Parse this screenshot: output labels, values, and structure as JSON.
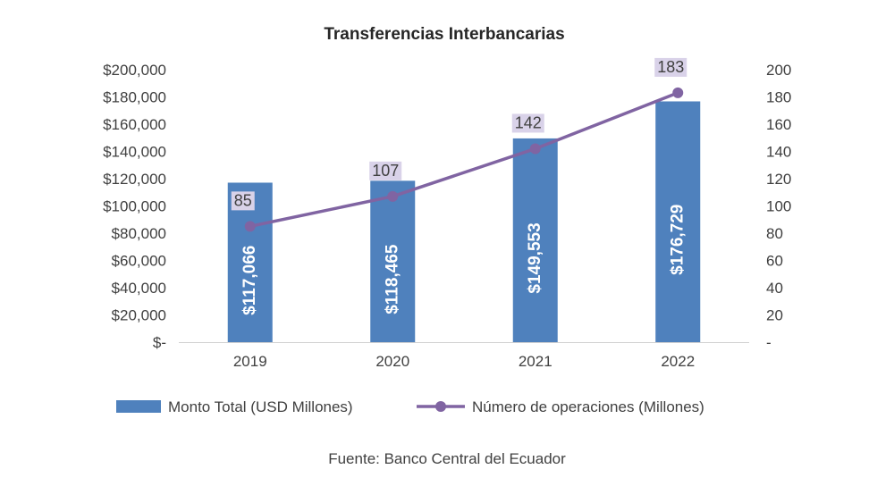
{
  "chart_data": {
    "type": "bar",
    "title": "Transferencias Interbancarias",
    "categories": [
      "2019",
      "2020",
      "2021",
      "2022"
    ],
    "series": [
      {
        "name": "Monto Total (USD Millones)",
        "type": "bar",
        "axis": "left",
        "values": [
          117066,
          118465,
          149553,
          176729
        ],
        "data_labels": [
          "$117,066",
          "$118,465",
          "$149,553",
          "$176,729"
        ],
        "color": "#4f81bd"
      },
      {
        "name": "Número de operaciones (Millones)",
        "type": "line",
        "axis": "right",
        "values": [
          85,
          107,
          142,
          183
        ],
        "data_labels": [
          "85",
          "107",
          "142",
          "183"
        ],
        "color": "#8064a2",
        "label_bg": "#d9d2e9"
      }
    ],
    "y_left": {
      "ylim": [
        0,
        200000
      ],
      "tick_labels": [
        "$-",
        "$20,000",
        "$40,000",
        "$60,000",
        "$80,000",
        "$100,000",
        "$120,000",
        "$140,000",
        "$160,000",
        "$180,000",
        "$200,000"
      ]
    },
    "y_right": {
      "ylim": [
        0,
        200
      ],
      "tick_labels": [
        "-",
        "20",
        "40",
        "60",
        "80",
        "100",
        "120",
        "140",
        "160",
        "180",
        "200"
      ]
    },
    "grid": false,
    "legend_position": "bottom"
  },
  "footer": {
    "source": "Fuente: Banco Central del Ecuador"
  }
}
